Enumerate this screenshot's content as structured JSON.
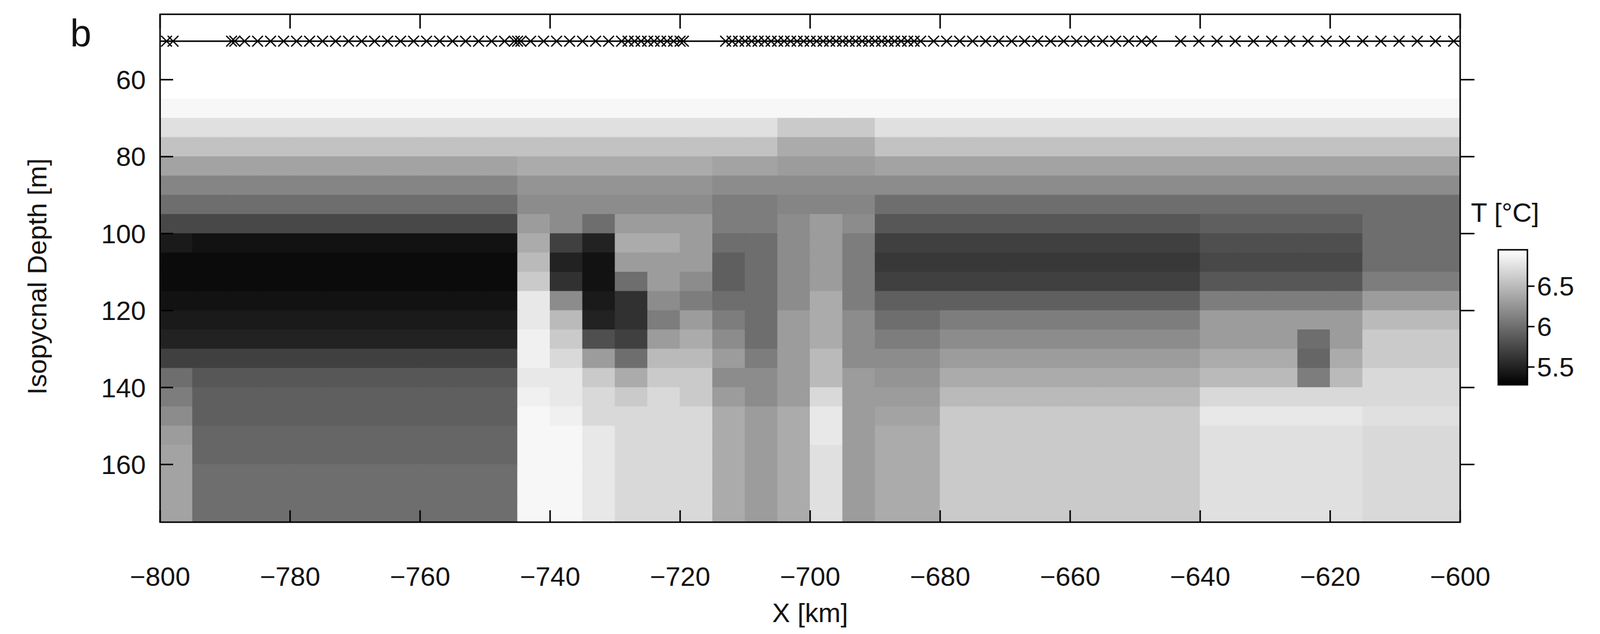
{
  "chart_data": {
    "type": "heatmap",
    "panel_label": "b",
    "xlabel": "X [km]",
    "ylabel": "Isopycnal Depth [m]",
    "xlim": [
      -800,
      -600
    ],
    "ylim": [
      175,
      43
    ],
    "xticks": [
      {
        "value": -800,
        "label": "−800"
      },
      {
        "value": -780,
        "label": "−780"
      },
      {
        "value": -760,
        "label": "−760"
      },
      {
        "value": -740,
        "label": "−740"
      },
      {
        "value": -720,
        "label": "−720"
      },
      {
        "value": -700,
        "label": "−700"
      },
      {
        "value": -680,
        "label": "−680"
      },
      {
        "value": -660,
        "label": "−660"
      },
      {
        "value": -640,
        "label": "−640"
      },
      {
        "value": -620,
        "label": "−620"
      },
      {
        "value": -600,
        "label": "−600"
      }
    ],
    "yticks": [
      60,
      80,
      100,
      120,
      140,
      160
    ],
    "marker": "x",
    "stations": [
      -799,
      -798,
      -789,
      -788.5,
      -787,
      -785,
      -783,
      -781,
      -779,
      -777,
      -775,
      -773,
      -771,
      -769,
      -767,
      -765,
      -763,
      -761,
      -759,
      -757,
      -755,
      -753,
      -751,
      -749,
      -747,
      -745.5,
      -745,
      -744.5,
      -743,
      -741,
      -739,
      -737,
      -735,
      -733,
      -731,
      -729,
      -728,
      -727,
      -726,
      -725,
      -724,
      -723,
      -722,
      -721,
      -720,
      -719.5,
      -713,
      -712,
      -711,
      -710,
      -709,
      -708,
      -707,
      -706,
      -705,
      -704,
      -703,
      -702,
      -701,
      -700,
      -699,
      -698,
      -697,
      -696,
      -695,
      -694,
      -693,
      -692,
      -691,
      -690,
      -689,
      -688,
      -687,
      -686,
      -685,
      -684,
      -683,
      -681,
      -679,
      -677,
      -675,
      -673,
      -671,
      -669,
      -667,
      -665,
      -663,
      -661,
      -659,
      -657,
      -655,
      -653,
      -651,
      -649,
      -647.5,
      -643,
      -640.2,
      -637.4,
      -634.6,
      -631.8,
      -629,
      -626.2,
      -623.4,
      -620.6,
      -617.8,
      -615,
      -612.2,
      -609.4,
      -606.6,
      -603.8,
      -601
    ],
    "x": [
      -797.5,
      -792.5,
      -787.5,
      -782.5,
      -777.5,
      -772.5,
      -767.5,
      -762.5,
      -757.5,
      -752.5,
      -747.5,
      -742.5,
      -737.5,
      -732.5,
      -727.5,
      -722.5,
      -717.5,
      -712.5,
      -707.5,
      -702.5,
      -697.5,
      -692.5,
      -687.5,
      -682.5,
      -677.5,
      -672.5,
      -667.5,
      -662.5,
      -657.5,
      -652.5,
      -647.5,
      -642.5,
      -637.5,
      -632.5,
      -627.5,
      -622.5,
      -617.5,
      -612.5,
      -607.5,
      -602.5
    ],
    "y": [
      52.5,
      57.5,
      62.5,
      67.5,
      72.5,
      77.5,
      82.5,
      87.5,
      92.5,
      97.5,
      102.5,
      107.5,
      112.5,
      117.5,
      122.5,
      127.5,
      132.5,
      137.5,
      142.5,
      147.5,
      152.5,
      157.5,
      162.5,
      167.5,
      172.5
    ],
    "z": [
      [
        6.95,
        6.95,
        6.95,
        6.95,
        6.95,
        6.95,
        6.95,
        6.95,
        6.95,
        6.95,
        6.95,
        6.95,
        6.95,
        6.95,
        6.95,
        6.95,
        6.95,
        6.95,
        6.95,
        6.95,
        6.95,
        6.95,
        6.95,
        6.95,
        6.95,
        6.95,
        6.95,
        6.95,
        6.95,
        6.95,
        6.95,
        6.95,
        6.95,
        6.95,
        6.95,
        6.95,
        6.95,
        6.95,
        6.95,
        6.95
      ],
      [
        6.95,
        6.95,
        6.95,
        6.95,
        6.95,
        6.95,
        6.95,
        6.95,
        6.95,
        6.95,
        6.95,
        6.95,
        6.95,
        6.95,
        6.95,
        6.95,
        6.95,
        6.95,
        6.95,
        6.95,
        6.95,
        6.95,
        6.95,
        6.95,
        6.95,
        6.95,
        6.95,
        6.95,
        6.95,
        6.95,
        6.95,
        6.95,
        6.95,
        6.95,
        6.95,
        6.95,
        6.95,
        6.95,
        6.95,
        6.95
      ],
      [
        6.95,
        6.95,
        6.95,
        6.95,
        6.95,
        6.95,
        6.95,
        6.95,
        6.95,
        6.95,
        6.95,
        6.95,
        6.95,
        6.95,
        6.95,
        6.95,
        6.95,
        6.95,
        6.95,
        6.95,
        6.95,
        6.95,
        6.95,
        6.95,
        6.95,
        6.95,
        6.95,
        6.95,
        6.95,
        6.95,
        6.95,
        6.95,
        6.95,
        6.95,
        6.95,
        6.95,
        6.95,
        6.95,
        6.95,
        6.95
      ],
      [
        6.9,
        6.9,
        6.9,
        6.9,
        6.9,
        6.9,
        6.9,
        6.9,
        6.9,
        6.9,
        6.9,
        6.9,
        6.9,
        6.9,
        6.9,
        6.9,
        6.9,
        6.9,
        6.9,
        6.9,
        6.9,
        6.9,
        6.9,
        6.9,
        6.9,
        6.9,
        6.9,
        6.9,
        6.9,
        6.9,
        6.9,
        6.9,
        6.9,
        6.9,
        6.9,
        6.9,
        6.9,
        6.9,
        6.9,
        6.9
      ],
      [
        6.75,
        6.75,
        6.75,
        6.75,
        6.75,
        6.75,
        6.75,
        6.75,
        6.75,
        6.75,
        6.75,
        6.75,
        6.75,
        6.75,
        6.75,
        6.75,
        6.75,
        6.75,
        6.75,
        6.6,
        6.6,
        6.6,
        6.75,
        6.75,
        6.75,
        6.75,
        6.75,
        6.75,
        6.75,
        6.75,
        6.75,
        6.75,
        6.75,
        6.75,
        6.75,
        6.75,
        6.75,
        6.75,
        6.75,
        6.75
      ],
      [
        6.55,
        6.55,
        6.55,
        6.55,
        6.55,
        6.55,
        6.55,
        6.55,
        6.55,
        6.55,
        6.55,
        6.55,
        6.55,
        6.55,
        6.55,
        6.55,
        6.55,
        6.55,
        6.55,
        6.4,
        6.4,
        6.4,
        6.55,
        6.55,
        6.55,
        6.55,
        6.55,
        6.55,
        6.55,
        6.55,
        6.55,
        6.55,
        6.55,
        6.55,
        6.55,
        6.55,
        6.55,
        6.55,
        6.55,
        6.55
      ],
      [
        6.35,
        6.35,
        6.35,
        6.35,
        6.35,
        6.35,
        6.35,
        6.35,
        6.35,
        6.35,
        6.35,
        6.4,
        6.4,
        6.4,
        6.4,
        6.4,
        6.4,
        6.35,
        6.35,
        6.3,
        6.3,
        6.3,
        6.35,
        6.35,
        6.35,
        6.35,
        6.35,
        6.35,
        6.35,
        6.35,
        6.35,
        6.35,
        6.35,
        6.35,
        6.35,
        6.35,
        6.35,
        6.35,
        6.35,
        6.35
      ],
      [
        6.15,
        6.15,
        6.15,
        6.15,
        6.15,
        6.15,
        6.15,
        6.15,
        6.15,
        6.15,
        6.15,
        6.25,
        6.25,
        6.25,
        6.25,
        6.25,
        6.25,
        6.2,
        6.2,
        6.2,
        6.2,
        6.2,
        6.2,
        6.2,
        6.2,
        6.2,
        6.2,
        6.2,
        6.2,
        6.2,
        6.2,
        6.2,
        6.2,
        6.2,
        6.2,
        6.2,
        6.2,
        6.2,
        6.2,
        6.2
      ],
      [
        6.0,
        6.0,
        6.0,
        6.0,
        6.0,
        6.0,
        6.0,
        6.0,
        6.0,
        6.0,
        6.0,
        6.2,
        6.2,
        6.2,
        6.2,
        6.2,
        6.2,
        6.1,
        6.1,
        6.15,
        6.15,
        6.15,
        6.0,
        6.0,
        6.0,
        6.0,
        6.0,
        6.0,
        6.0,
        6.0,
        6.0,
        6.0,
        6.0,
        6.0,
        6.0,
        6.0,
        6.0,
        6.0,
        6.0,
        6.0
      ],
      [
        5.75,
        5.75,
        5.75,
        5.75,
        5.75,
        5.75,
        5.75,
        5.75,
        5.75,
        5.75,
        5.75,
        6.3,
        6.2,
        6.0,
        6.3,
        6.3,
        6.3,
        6.1,
        6.1,
        6.2,
        6.3,
        6.2,
        5.85,
        5.85,
        5.85,
        5.85,
        5.85,
        5.85,
        5.85,
        5.85,
        5.85,
        5.85,
        5.9,
        5.9,
        5.9,
        5.9,
        5.9,
        6.0,
        6.0,
        6.0
      ],
      [
        5.45,
        5.4,
        5.4,
        5.4,
        5.4,
        5.4,
        5.4,
        5.4,
        5.4,
        5.4,
        5.4,
        6.4,
        5.7,
        5.5,
        6.4,
        6.4,
        6.3,
        6.0,
        6.0,
        6.2,
        6.3,
        6.1,
        5.7,
        5.7,
        5.7,
        5.7,
        5.7,
        5.7,
        5.7,
        5.7,
        5.7,
        5.7,
        5.8,
        5.8,
        5.8,
        5.8,
        5.8,
        6.0,
        6.0,
        6.0
      ],
      [
        5.35,
        5.35,
        5.35,
        5.35,
        5.35,
        5.35,
        5.35,
        5.35,
        5.35,
        5.35,
        5.35,
        6.5,
        5.5,
        5.4,
        6.3,
        6.3,
        6.3,
        5.9,
        6.0,
        6.2,
        6.3,
        6.1,
        5.65,
        5.65,
        5.65,
        5.65,
        5.65,
        5.65,
        5.65,
        5.65,
        5.65,
        5.65,
        5.75,
        5.75,
        5.75,
        5.75,
        5.75,
        6.0,
        6.0,
        6.0
      ],
      [
        5.35,
        5.35,
        5.35,
        5.35,
        5.35,
        5.35,
        5.35,
        5.35,
        5.35,
        5.35,
        5.35,
        6.6,
        5.6,
        5.4,
        6.0,
        6.3,
        6.2,
        5.9,
        6.0,
        6.2,
        6.3,
        6.1,
        5.7,
        5.7,
        5.7,
        5.7,
        5.7,
        5.7,
        5.7,
        5.7,
        5.7,
        5.7,
        5.85,
        5.85,
        5.85,
        5.85,
        5.85,
        6.1,
        6.1,
        6.1
      ],
      [
        5.4,
        5.4,
        5.4,
        5.4,
        5.4,
        5.4,
        5.4,
        5.4,
        5.4,
        5.4,
        5.4,
        6.8,
        6.2,
        5.45,
        5.6,
        6.2,
        6.1,
        6.0,
        6.0,
        6.2,
        6.4,
        6.1,
        5.9,
        5.9,
        5.9,
        5.9,
        5.9,
        5.9,
        5.9,
        5.9,
        5.9,
        5.9,
        6.1,
        6.1,
        6.1,
        6.1,
        6.1,
        6.3,
        6.3,
        6.3
      ],
      [
        5.45,
        5.45,
        5.45,
        5.45,
        5.45,
        5.45,
        5.45,
        5.45,
        5.45,
        5.45,
        5.45,
        6.8,
        6.5,
        5.5,
        5.6,
        6.1,
        6.3,
        6.1,
        6.0,
        6.3,
        6.4,
        6.2,
        6.0,
        6.0,
        6.1,
        6.1,
        6.1,
        6.1,
        6.1,
        6.1,
        6.1,
        6.1,
        6.3,
        6.3,
        6.3,
        6.3,
        6.3,
        6.5,
        6.5,
        6.5
      ],
      [
        5.5,
        5.5,
        5.5,
        5.5,
        5.5,
        5.5,
        5.5,
        5.5,
        5.5,
        5.5,
        5.5,
        6.85,
        6.6,
        5.8,
        5.7,
        6.3,
        6.4,
        6.2,
        6.0,
        6.3,
        6.4,
        6.2,
        6.1,
        6.1,
        6.2,
        6.2,
        6.2,
        6.2,
        6.2,
        6.2,
        6.2,
        6.2,
        6.3,
        6.3,
        6.3,
        6.0,
        6.3,
        6.6,
        6.6,
        6.6
      ],
      [
        5.7,
        5.7,
        5.7,
        5.7,
        5.7,
        5.7,
        5.7,
        5.7,
        5.7,
        5.7,
        5.7,
        6.85,
        6.7,
        6.3,
        6.0,
        6.5,
        6.5,
        6.3,
        6.1,
        6.3,
        6.5,
        6.2,
        6.2,
        6.2,
        6.3,
        6.3,
        6.3,
        6.3,
        6.3,
        6.3,
        6.3,
        6.3,
        6.4,
        6.4,
        6.4,
        5.95,
        6.4,
        6.6,
        6.6,
        6.6
      ],
      [
        6.0,
        5.85,
        5.85,
        5.85,
        5.85,
        5.85,
        5.85,
        5.85,
        5.85,
        5.85,
        5.85,
        6.8,
        6.8,
        6.6,
        6.4,
        6.6,
        6.6,
        6.2,
        6.2,
        6.3,
        6.5,
        6.3,
        6.25,
        6.25,
        6.4,
        6.4,
        6.4,
        6.4,
        6.4,
        6.4,
        6.4,
        6.4,
        6.5,
        6.5,
        6.5,
        6.1,
        6.5,
        6.7,
        6.7,
        6.7
      ],
      [
        6.1,
        5.9,
        5.9,
        5.9,
        5.9,
        5.9,
        5.9,
        5.9,
        5.9,
        5.9,
        5.9,
        6.85,
        6.8,
        6.7,
        6.6,
        6.7,
        6.6,
        6.3,
        6.2,
        6.3,
        6.7,
        6.3,
        6.3,
        6.3,
        6.5,
        6.5,
        6.5,
        6.5,
        6.5,
        6.5,
        6.5,
        6.5,
        6.7,
        6.7,
        6.7,
        6.7,
        6.7,
        6.7,
        6.7,
        6.7
      ],
      [
        6.2,
        5.9,
        5.9,
        5.9,
        5.9,
        5.9,
        5.9,
        5.9,
        5.9,
        5.9,
        5.9,
        6.9,
        6.85,
        6.7,
        6.7,
        6.7,
        6.7,
        6.4,
        6.3,
        6.4,
        6.8,
        6.3,
        6.35,
        6.35,
        6.6,
        6.6,
        6.6,
        6.6,
        6.6,
        6.6,
        6.6,
        6.6,
        6.8,
        6.8,
        6.8,
        6.8,
        6.8,
        6.75,
        6.75,
        6.75
      ],
      [
        6.3,
        5.95,
        5.95,
        5.95,
        5.95,
        5.95,
        5.95,
        5.95,
        5.95,
        5.95,
        5.95,
        6.9,
        6.9,
        6.8,
        6.7,
        6.7,
        6.7,
        6.4,
        6.3,
        6.4,
        6.8,
        6.3,
        6.4,
        6.4,
        6.6,
        6.6,
        6.6,
        6.6,
        6.6,
        6.6,
        6.6,
        6.6,
        6.75,
        6.75,
        6.75,
        6.75,
        6.75,
        6.7,
        6.7,
        6.7
      ],
      [
        6.35,
        5.95,
        5.95,
        5.95,
        5.95,
        5.95,
        5.95,
        5.95,
        5.95,
        5.95,
        5.95,
        6.9,
        6.9,
        6.8,
        6.7,
        6.7,
        6.7,
        6.4,
        6.3,
        6.4,
        6.75,
        6.3,
        6.4,
        6.4,
        6.6,
        6.6,
        6.6,
        6.6,
        6.6,
        6.6,
        6.6,
        6.6,
        6.75,
        6.75,
        6.75,
        6.75,
        6.75,
        6.7,
        6.7,
        6.7
      ],
      [
        6.35,
        6.0,
        6.0,
        6.0,
        6.0,
        6.0,
        6.0,
        6.0,
        6.0,
        6.0,
        6.0,
        6.9,
        6.9,
        6.8,
        6.7,
        6.7,
        6.7,
        6.4,
        6.3,
        6.4,
        6.75,
        6.3,
        6.4,
        6.4,
        6.6,
        6.6,
        6.6,
        6.6,
        6.6,
        6.6,
        6.6,
        6.6,
        6.75,
        6.75,
        6.75,
        6.75,
        6.75,
        6.7,
        6.7,
        6.7
      ],
      [
        6.35,
        6.0,
        6.0,
        6.0,
        6.0,
        6.0,
        6.0,
        6.0,
        6.0,
        6.0,
        6.0,
        6.9,
        6.9,
        6.8,
        6.7,
        6.7,
        6.7,
        6.4,
        6.3,
        6.4,
        6.75,
        6.3,
        6.4,
        6.4,
        6.6,
        6.6,
        6.6,
        6.6,
        6.6,
        6.6,
        6.6,
        6.6,
        6.75,
        6.75,
        6.75,
        6.75,
        6.75,
        6.7,
        6.7,
        6.7
      ],
      [
        6.35,
        6.0,
        6.0,
        6.0,
        6.0,
        6.0,
        6.0,
        6.0,
        6.0,
        6.0,
        6.0,
        6.9,
        6.9,
        6.8,
        6.7,
        6.7,
        6.7,
        6.4,
        6.3,
        6.4,
        6.75,
        6.3,
        6.4,
        6.4,
        6.6,
        6.6,
        6.6,
        6.6,
        6.6,
        6.6,
        6.6,
        6.6,
        6.75,
        6.75,
        6.75,
        6.75,
        6.75,
        6.7,
        6.7,
        6.7
      ]
    ],
    "colorbar": {
      "label": "T [°C]",
      "range": [
        5.28,
        6.95
      ],
      "ticks": [
        5.5,
        6,
        6.5
      ]
    }
  }
}
